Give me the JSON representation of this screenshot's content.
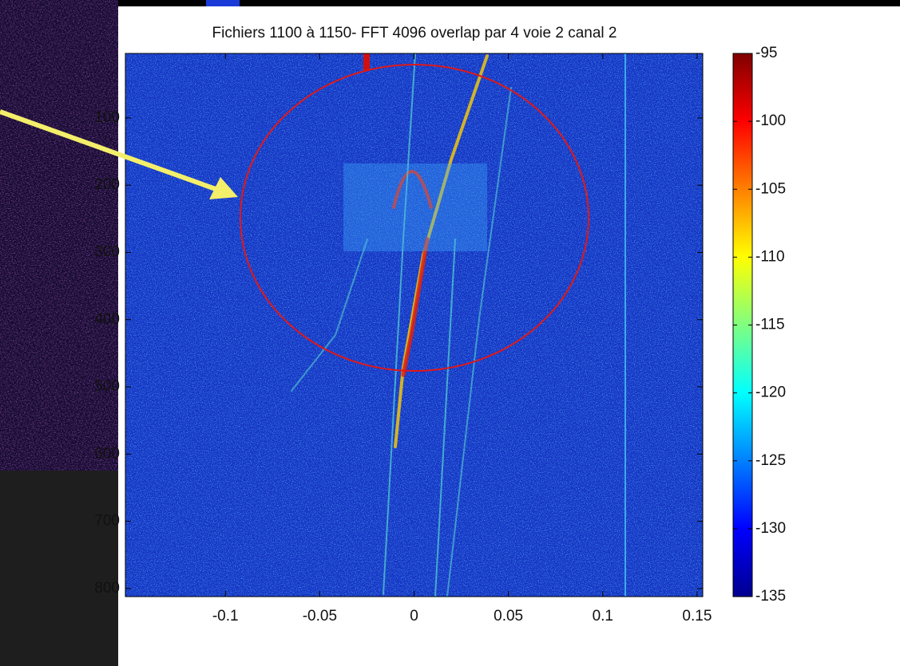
{
  "chart_data": {
    "type": "heatmap",
    "title": "Fichiers 1100 à 1150- FFT 4096 overlap par 4 voie 2 canal 2",
    "xlim": [
      -0.153,
      0.153
    ],
    "xticks": [
      -0.1,
      -0.05,
      0,
      0.05,
      0.1,
      0.15
    ],
    "ylim": [
      4,
      812
    ],
    "yticks": [
      100,
      200,
      300,
      400,
      500,
      600,
      700,
      800
    ],
    "y_reversed": true,
    "colormap": "jet",
    "colorbar": {
      "clim": [
        -135,
        -95
      ],
      "ticks": [
        -135,
        -130,
        -125,
        -120,
        -115,
        -110,
        -105,
        -100,
        -95
      ]
    }
  }
}
